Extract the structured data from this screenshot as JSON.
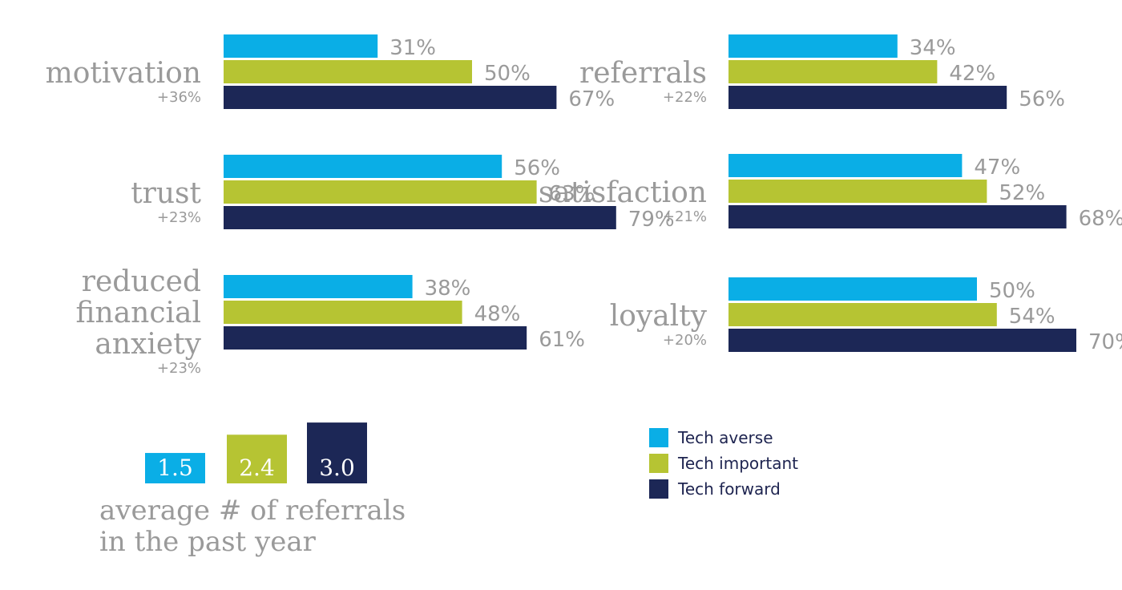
{
  "colors": {
    "tech_averse": "#0aaee6",
    "tech_important": "#b6c433",
    "tech_forward": "#1c2756",
    "label": "#9a9a9a"
  },
  "legend": [
    {
      "key": "tech_averse",
      "label": "Tech averse"
    },
    {
      "key": "tech_important",
      "label": "Tech important"
    },
    {
      "key": "tech_forward",
      "label": "Tech forward"
    }
  ],
  "chart_data": [
    {
      "type": "bar",
      "orientation": "horizontal",
      "unit": "%",
      "panels": [
        {
          "label_lines": [
            "motivation"
          ],
          "diff": "+36%",
          "values": [
            31,
            50,
            67
          ]
        },
        {
          "label_lines": [
            "trust"
          ],
          "diff": "+23%",
          "values": [
            56,
            63,
            79
          ]
        },
        {
          "label_lines": [
            "reduced",
            "financial",
            "anxiety"
          ],
          "diff": "+23%",
          "values": [
            38,
            48,
            61
          ]
        },
        {
          "label_lines": [
            "referrals"
          ],
          "diff": "+22%",
          "values": [
            34,
            42,
            56
          ]
        },
        {
          "label_lines": [
            "satisfaction"
          ],
          "diff": "+21%",
          "values": [
            47,
            52,
            68
          ]
        },
        {
          "label_lines": [
            "loyalty"
          ],
          "diff": "+20%",
          "values": [
            50,
            54,
            70
          ]
        }
      ],
      "series": [
        {
          "name": "Tech averse"
        },
        {
          "name": "Tech important"
        },
        {
          "name": "Tech forward"
        }
      ]
    },
    {
      "type": "bar",
      "orientation": "vertical",
      "caption_lines": [
        "average # of referrals",
        "in the past year"
      ],
      "categories": [
        "Tech averse",
        "Tech important",
        "Tech forward"
      ],
      "values": [
        1.5,
        2.4,
        3.0
      ],
      "value_labels": [
        "1.5",
        "2.4",
        "3.0"
      ]
    }
  ]
}
